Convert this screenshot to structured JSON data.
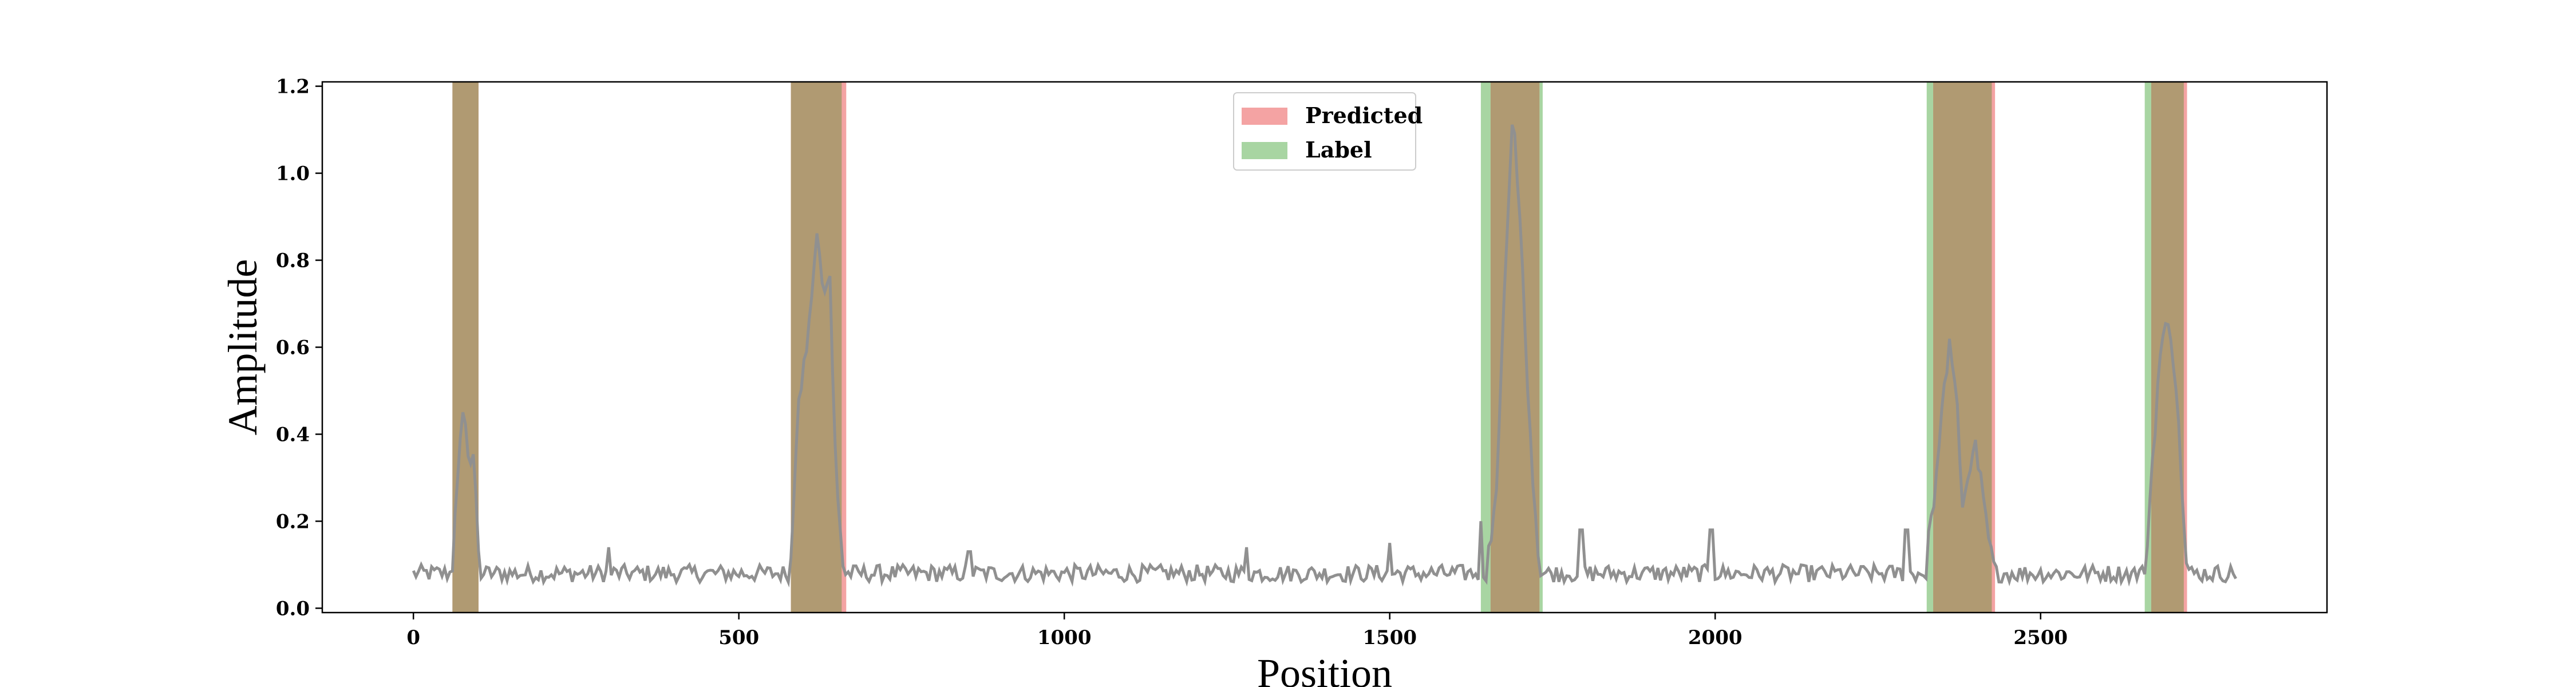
{
  "chart_data": {
    "type": "line",
    "title": "",
    "xlabel": "Position",
    "ylabel": "Amplitude",
    "xlim": [
      -140,
      2940
    ],
    "ylim": [
      -0.01,
      1.21
    ],
    "x_ticks": [
      0,
      500,
      1000,
      1500,
      2000,
      2500
    ],
    "y_ticks": [
      0.0,
      0.2,
      0.4,
      0.6,
      0.8,
      1.0,
      1.2
    ],
    "grid": false,
    "legend_location": "upper center",
    "legend": [
      {
        "label": "Predicted",
        "color": "#f4a3a3"
      },
      {
        "label": "Label",
        "color": "#a8d5a2"
      }
    ],
    "overlap_color": "#b09a72",
    "signal_color": "#909090",
    "predicted_spans": [
      [
        60,
        100
      ],
      [
        580,
        665
      ],
      [
        1655,
        1730
      ],
      [
        2335,
        2430
      ],
      [
        2670,
        2725
      ]
    ],
    "label_spans": [
      [
        60,
        100
      ],
      [
        580,
        658
      ],
      [
        1640,
        1735
      ],
      [
        2325,
        2425
      ],
      [
        2660,
        2720
      ]
    ],
    "signal": {
      "x_range": [
        0,
        2800
      ],
      "baseline": 0.08,
      "baseline_noise": 0.02,
      "peaks": [
        {
          "x": [
            60,
            68,
            75,
            85,
            92,
            100
          ],
          "y": [
            0.1,
            0.3,
            0.47,
            0.34,
            0.36,
            0.12
          ]
        },
        {
          "x": [
            580,
            590,
            600,
            610,
            620,
            630,
            640,
            650,
            660
          ],
          "y": [
            0.12,
            0.45,
            0.55,
            0.7,
            0.85,
            0.72,
            0.75,
            0.28,
            0.1
          ]
        },
        {
          "x": [
            1650,
            1665,
            1675,
            1685,
            1690,
            1700,
            1710,
            1720,
            1730
          ],
          "y": [
            0.1,
            0.3,
            0.7,
            1.0,
            1.15,
            0.9,
            0.55,
            0.3,
            0.1
          ]
        },
        {
          "x": [
            2325,
            2340,
            2350,
            2360,
            2370,
            2380,
            2400,
            2420,
            2430
          ],
          "y": [
            0.12,
            0.3,
            0.5,
            0.6,
            0.5,
            0.25,
            0.38,
            0.15,
            0.08
          ]
        },
        {
          "x": [
            2660,
            2675,
            2685,
            2695,
            2705,
            2715,
            2725
          ],
          "y": [
            0.08,
            0.4,
            0.6,
            0.66,
            0.57,
            0.35,
            0.08
          ]
        }
      ],
      "spikes": [
        {
          "x": 300,
          "y": 0.14
        },
        {
          "x": 855,
          "y": 0.13
        },
        {
          "x": 1280,
          "y": 0.14
        },
        {
          "x": 1500,
          "y": 0.15
        },
        {
          "x": 1640,
          "y": 0.2
        },
        {
          "x": 1795,
          "y": 0.18
        },
        {
          "x": 1995,
          "y": 0.18
        },
        {
          "x": 2295,
          "y": 0.18
        }
      ]
    }
  }
}
